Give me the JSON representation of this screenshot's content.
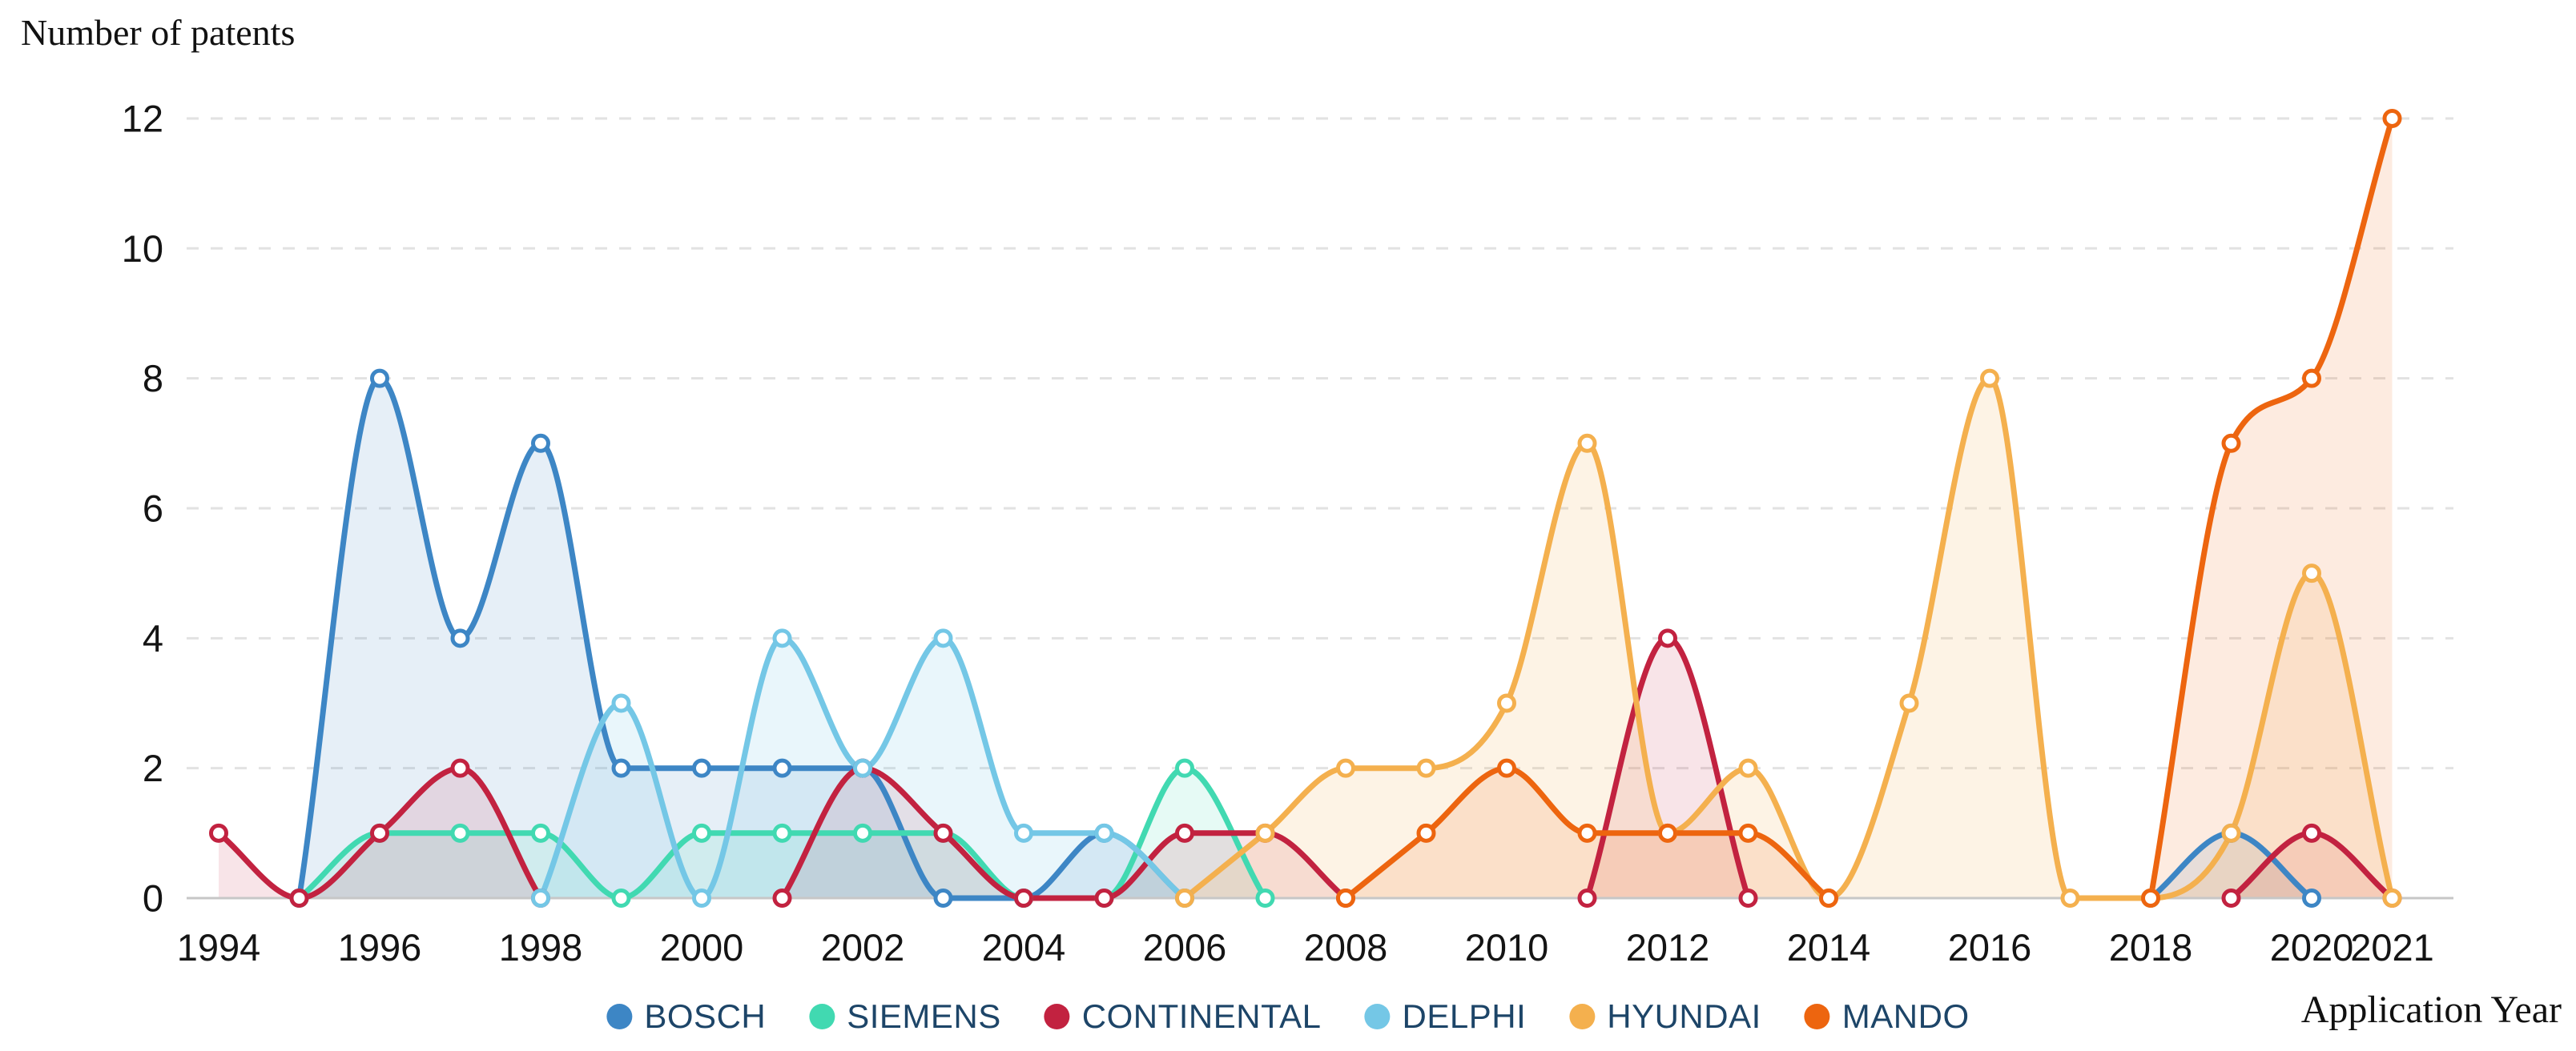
{
  "header": {
    "title": "Number of patents"
  },
  "chart_data": {
    "type": "area",
    "title": "Number of patents",
    "xlabel": "Application Year",
    "ylabel": "Number of patents",
    "x_ticks": [
      1994,
      1996,
      1998,
      2000,
      2002,
      2004,
      2006,
      2008,
      2010,
      2012,
      2014,
      2016,
      2018,
      2020,
      2021
    ],
    "y_ticks": [
      0,
      2,
      4,
      6,
      8,
      10,
      12
    ],
    "xlim": [
      1994,
      2021
    ],
    "ylim": [
      0,
      12
    ],
    "grid": "horizontal-dashed",
    "grid_color": "#e2e2e2",
    "baseline_color": "#c7c7c7",
    "axis_text_color": "#141414",
    "legend_position": "bottom-center",
    "legend_text_color": "#1d4568",
    "marker_style": "open-circle-white-fill",
    "series": [
      {
        "name": "BOSCH",
        "color": "#3d86c5",
        "fill_opacity": 0.13,
        "segments": [
          [
            [
              1995,
              0
            ],
            [
              1996,
              8
            ],
            [
              1997,
              4
            ],
            [
              1998,
              7
            ],
            [
              1999,
              2
            ],
            [
              2000,
              2
            ],
            [
              2001,
              2
            ],
            [
              2002,
              2
            ],
            [
              2003,
              0
            ],
            [
              2004,
              0
            ],
            [
              2005,
              1
            ],
            [
              2006,
              0
            ]
          ],
          [
            [
              2018,
              0
            ],
            [
              2019,
              1
            ],
            [
              2020,
              0
            ]
          ]
        ]
      },
      {
        "name": "SIEMENS",
        "color": "#41d9b1",
        "fill_opacity": 0.13,
        "segments": [
          [
            [
              1995,
              0
            ],
            [
              1996,
              1
            ],
            [
              1997,
              1
            ],
            [
              1998,
              1
            ],
            [
              1999,
              0
            ],
            [
              2000,
              1
            ],
            [
              2001,
              1
            ],
            [
              2002,
              1
            ],
            [
              2003,
              1
            ],
            [
              2004,
              0
            ],
            [
              2005,
              0
            ],
            [
              2006,
              2
            ],
            [
              2007,
              0
            ]
          ]
        ]
      },
      {
        "name": "CONTINENTAL",
        "color": "#c22240",
        "fill_opacity": 0.12,
        "segments": [
          [
            [
              1994,
              1
            ],
            [
              1995,
              0
            ],
            [
              1996,
              1
            ],
            [
              1997,
              2
            ],
            [
              1998,
              0
            ]
          ],
          [
            [
              2001,
              0
            ],
            [
              2002,
              2
            ],
            [
              2003,
              1
            ],
            [
              2004,
              0
            ],
            [
              2005,
              0
            ],
            [
              2006,
              1
            ],
            [
              2007,
              1
            ],
            [
              2008,
              0
            ]
          ],
          [
            [
              2011,
              0
            ],
            [
              2012,
              4
            ],
            [
              2013,
              0
            ]
          ],
          [
            [
              2019,
              0
            ],
            [
              2020,
              1
            ],
            [
              2021,
              0
            ]
          ]
        ]
      },
      {
        "name": "DELPHI",
        "color": "#74c7e6",
        "fill_opacity": 0.16,
        "segments": [
          [
            [
              1998,
              0
            ],
            [
              1999,
              3
            ],
            [
              2000,
              0
            ],
            [
              2001,
              4
            ],
            [
              2002,
              2
            ],
            [
              2003,
              4
            ],
            [
              2004,
              1
            ],
            [
              2005,
              1
            ],
            [
              2006,
              0
            ]
          ]
        ]
      },
      {
        "name": "HYUNDAI",
        "color": "#f4b04e",
        "fill_opacity": 0.15,
        "segments": [
          [
            [
              2006,
              0
            ],
            [
              2007,
              1
            ],
            [
              2008,
              2
            ],
            [
              2009,
              2
            ],
            [
              2010,
              3
            ],
            [
              2011,
              7
            ],
            [
              2012,
              1
            ],
            [
              2013,
              2
            ],
            [
              2014,
              0
            ],
            [
              2015,
              3
            ],
            [
              2016,
              8
            ],
            [
              2017,
              0
            ],
            [
              2018,
              0
            ],
            [
              2019,
              1
            ],
            [
              2020,
              5
            ],
            [
              2021,
              0
            ]
          ]
        ]
      },
      {
        "name": "MANDO",
        "color": "#ed650f",
        "fill_opacity": 0.13,
        "segments": [
          [
            [
              2008,
              0
            ],
            [
              2009,
              1
            ],
            [
              2010,
              2
            ],
            [
              2011,
              1
            ],
            [
              2012,
              1
            ],
            [
              2013,
              1
            ],
            [
              2014,
              0
            ]
          ],
          [
            [
              2018,
              0
            ],
            [
              2019,
              7
            ],
            [
              2020,
              8
            ],
            [
              2021,
              12
            ]
          ]
        ]
      }
    ]
  }
}
